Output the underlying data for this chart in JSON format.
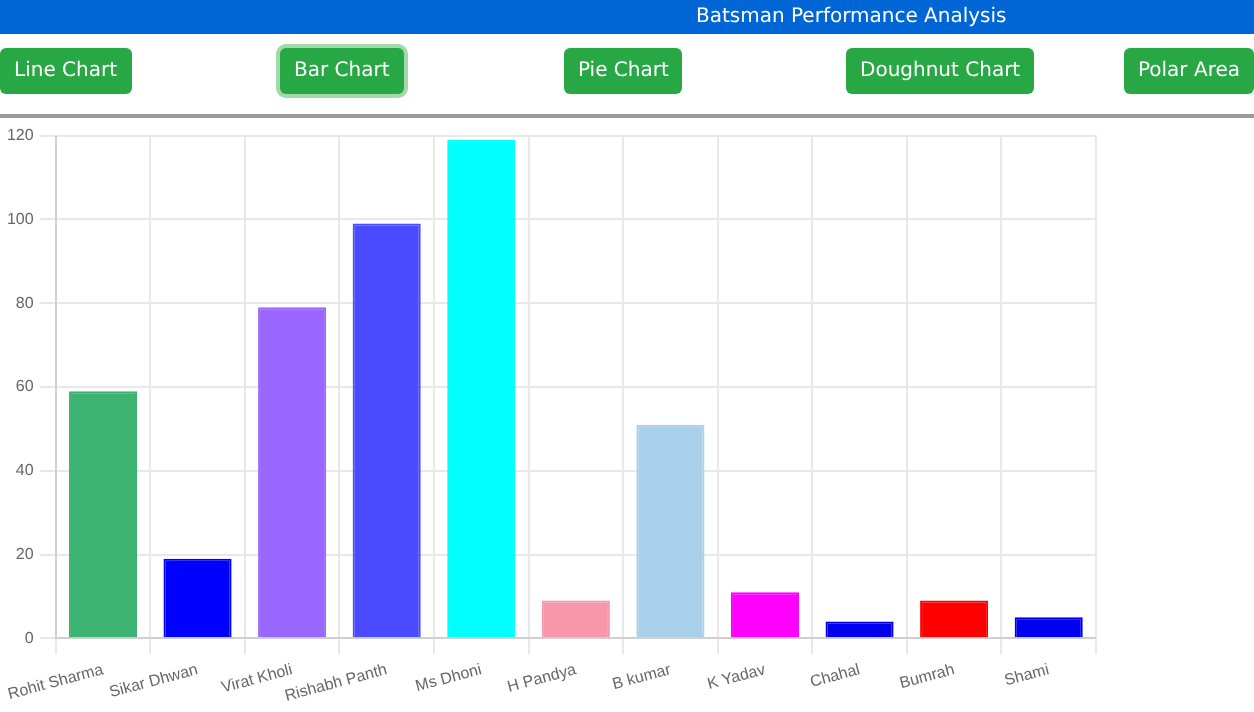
{
  "chart_data": {
    "type": "bar",
    "title": "Batsman Performance Analysis",
    "annotations": [
      "Line Chart",
      "Bar Chart",
      "Pie Chart",
      "Doughnut Chart",
      "Polar Area"
    ],
    "categories": [
      "Rohit Sharma",
      "Sikar Dhwan",
      "Virat Kholi",
      "Rishabh Panth",
      "Ms Dhoni",
      "H Pandya",
      "B kumar",
      "K Yadav",
      "Chahal",
      "Bumrah",
      "Shami"
    ],
    "values": [
      59,
      19,
      79,
      99,
      119,
      9,
      51,
      11,
      4,
      9,
      5
    ],
    "colors": [
      "#3cb371",
      "#0000ff",
      "#9966ff",
      "#4a4aff",
      "#00ffff",
      "#f896aa",
      "#a9d0eb",
      "#ff00ff",
      "#0000ee",
      "#ff0000",
      "#0000f0"
    ],
    "ylim": [
      0,
      120
    ],
    "yticks": [
      0,
      20,
      40,
      60,
      80,
      100,
      120
    ],
    "grid": true,
    "legend": false
  }
}
